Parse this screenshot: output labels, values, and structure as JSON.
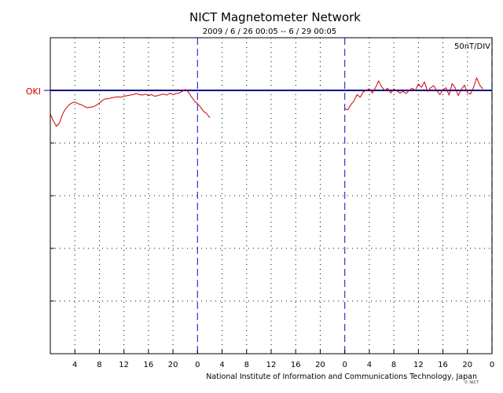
{
  "header": {
    "title": "NICT Magnetometer Network",
    "subtitle": "2009 / 6 / 26   00:05 --  6 / 29   00:05",
    "scale": "50nT/DIV"
  },
  "footer": {
    "credit": "National Institute of Information and Communications Technology, Japan",
    "mark": "© NICT"
  },
  "colors": {
    "frame": "#000000",
    "baseline": "#00008b",
    "day_divider": "#3333cc",
    "trace": "#cc0000",
    "station_label": "#cc0000",
    "grid": "#000000"
  },
  "chart_data": {
    "type": "line",
    "title": "NICT Magnetometer Network",
    "subtitle": "2009 / 6 / 26   00:05 --  6 / 29   00:05",
    "xlabel": "",
    "ylabel": "",
    "x_unit": "hours since 2009/6/26 00:05",
    "xlim": [
      0,
      72
    ],
    "ylim": [
      -5,
      1
    ],
    "y_unit": "divisions (50 nT/DIV), 0 = station baseline",
    "x_tick_labels": [
      "4",
      "8",
      "12",
      "16",
      "20",
      "0",
      "4",
      "8",
      "12",
      "16",
      "20",
      "0",
      "4",
      "8",
      "12",
      "16",
      "20",
      "0"
    ],
    "day_dividers_hours": [
      24,
      48,
      72
    ],
    "grid": "dotted",
    "series": [
      {
        "name": "OKI",
        "baseline_level": 0,
        "segments": [
          {
            "x": [
              0,
              0.5,
              1,
              1.5,
              2,
              2.5,
              3,
              3.5,
              4,
              4.5,
              5,
              5.5,
              6,
              6.5,
              7,
              7.5,
              8,
              8.5,
              9,
              9.5,
              10,
              10.5,
              11,
              11.5,
              12,
              12.5,
              13,
              13.5,
              14,
              14.5,
              15,
              15.5,
              16,
              16.5,
              17,
              17.5,
              18,
              18.5,
              19,
              19.5,
              20,
              20.5,
              21,
              21.5,
              22,
              22.5,
              23,
              23.5,
              24,
              24.5,
              25,
              25.5,
              26
            ],
            "y": [
              -0.45,
              -0.58,
              -0.68,
              -0.62,
              -0.45,
              -0.35,
              -0.28,
              -0.24,
              -0.22,
              -0.25,
              -0.27,
              -0.3,
              -0.33,
              -0.32,
              -0.31,
              -0.28,
              -0.24,
              -0.19,
              -0.16,
              -0.16,
              -0.14,
              -0.13,
              -0.12,
              -0.13,
              -0.11,
              -0.1,
              -0.09,
              -0.08,
              -0.06,
              -0.08,
              -0.09,
              -0.07,
              -0.1,
              -0.08,
              -0.11,
              -0.1,
              -0.08,
              -0.07,
              -0.09,
              -0.05,
              -0.08,
              -0.06,
              -0.05,
              -0.02,
              0.02,
              -0.03,
              -0.12,
              -0.2,
              -0.25,
              -0.32,
              -0.4,
              -0.44,
              -0.52
            ]
          },
          {
            "x": [
              48,
              48.5,
              49,
              49.5,
              50,
              50.5,
              51,
              51.5,
              52,
              52.5,
              53,
              53.5,
              54,
              54.5,
              55,
              55.5,
              56,
              56.5,
              57,
              57.5,
              58,
              58.5,
              59,
              59.5,
              60,
              60.5,
              61,
              61.5,
              62,
              62.5,
              63,
              63.5,
              64,
              64.5,
              65,
              65.5,
              66,
              66.5,
              67,
              67.5,
              68,
              68.5,
              69,
              69.5,
              70,
              70.5
            ],
            "y": [
              -0.35,
              -0.37,
              -0.27,
              -0.2,
              -0.08,
              -0.13,
              -0.03,
              0.0,
              0.03,
              -0.05,
              0.05,
              0.18,
              0.07,
              0.0,
              0.04,
              -0.05,
              0.03,
              -0.01,
              -0.05,
              -0.02,
              -0.06,
              0.0,
              0.04,
              0.0,
              0.12,
              0.06,
              0.16,
              -0.02,
              0.05,
              0.09,
              0.0,
              -0.08,
              0.02,
              0.05,
              -0.09,
              0.13,
              0.05,
              -0.1,
              0.02,
              0.1,
              -0.04,
              -0.07,
              0.06,
              0.24,
              0.1,
              0.03
            ]
          }
        ]
      }
    ]
  }
}
